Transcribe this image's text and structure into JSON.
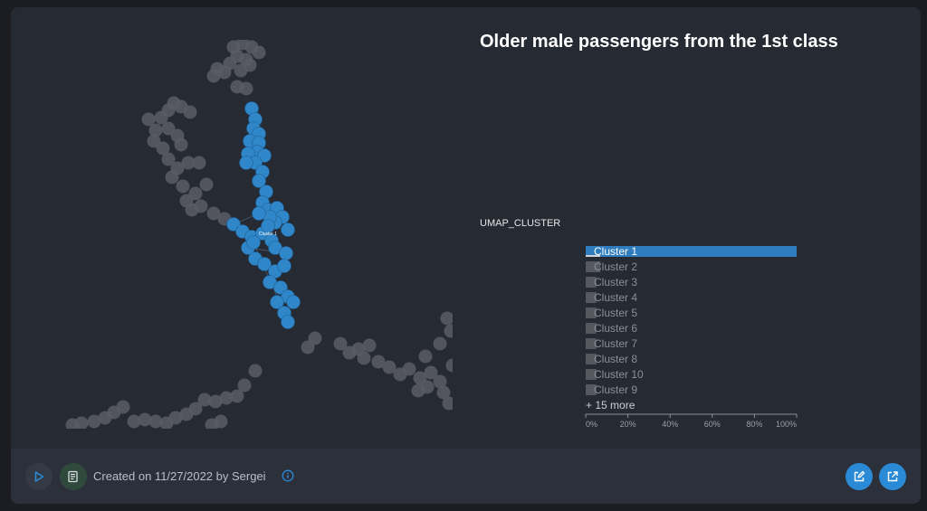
{
  "title": "Older male passengers from the 1st class",
  "graph": {
    "highlight_label": "Cluster 1",
    "colors": {
      "highlight": "#2f86c8",
      "muted": "#5a5d65",
      "edge": "#7fb2da"
    }
  },
  "chart_data": {
    "type": "bar",
    "orientation": "horizontal",
    "ylabel": "UMAP_CLUSTER",
    "categories": [
      "Cluster 1",
      "Cluster 2",
      "Cluster 3",
      "Cluster 4",
      "Cluster 5",
      "Cluster 6",
      "Cluster 7",
      "Cluster 8",
      "Cluster 10",
      "Cluster 9"
    ],
    "values": [
      100,
      7,
      5,
      5,
      5,
      5,
      5,
      5,
      5,
      5
    ],
    "more_label": "+ 15 more",
    "xlim": [
      0,
      100
    ],
    "xticks": [
      "0%",
      "20%",
      "40%",
      "60%",
      "80%",
      "100%"
    ],
    "colors": {
      "selected": "#2f7dbf",
      "other": "#55585f",
      "selected_text": "#ffffff",
      "other_text": "#8a8f99"
    }
  },
  "footer": {
    "created_text": "Created on 11/27/2022 by Sergei",
    "play_icon": "play-icon",
    "story_icon": "story-icon",
    "info_icon": "info-icon",
    "edit_icon": "edit-icon",
    "open_icon": "external-link-icon"
  }
}
